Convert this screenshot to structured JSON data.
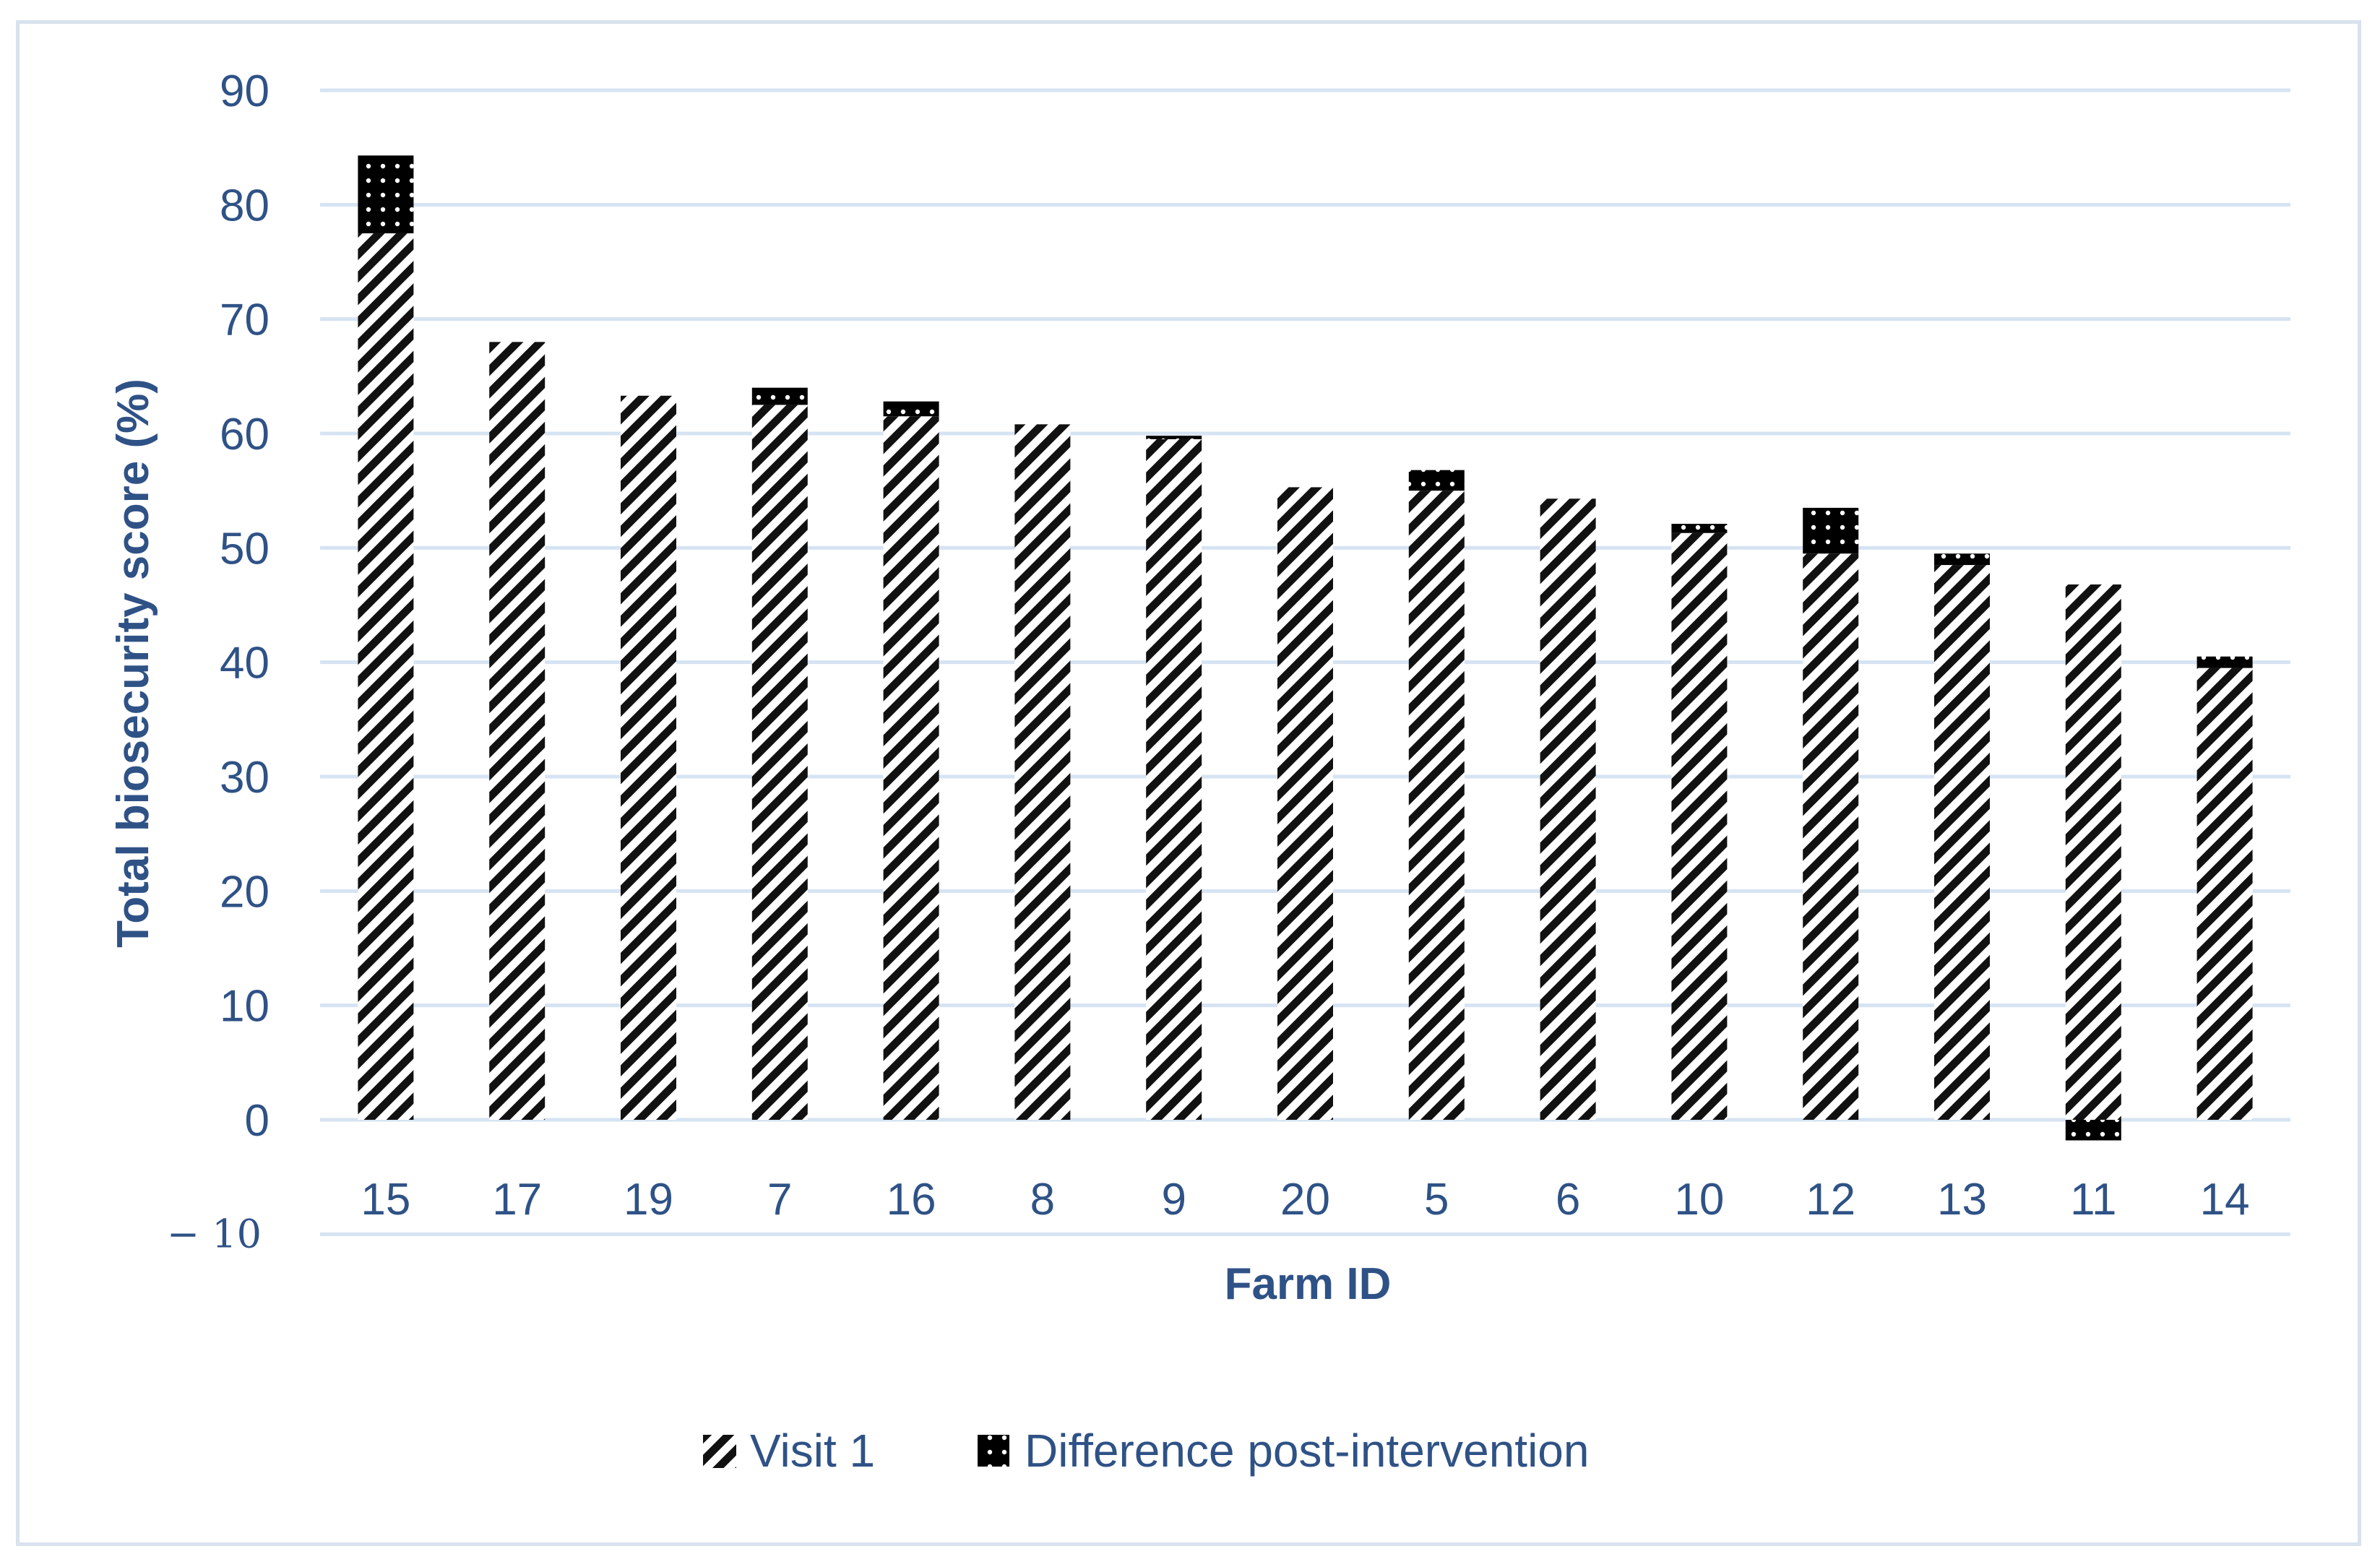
{
  "chart_data": {
    "type": "bar",
    "stacked": true,
    "title": "",
    "xlabel": "Farm ID",
    "ylabel": "Total biosecurity score (%)",
    "ylim": [
      -10,
      90
    ],
    "yticks": [
      90,
      80,
      70,
      60,
      50,
      40,
      30,
      20,
      10,
      0
    ],
    "ytick_neg_label": "− 10",
    "grid": true,
    "legend_position": "bottom",
    "categories": [
      "15",
      "17",
      "19",
      "7",
      "16",
      "8",
      "9",
      "20",
      "5",
      "6",
      "10",
      "12",
      "13",
      "11",
      "14"
    ],
    "series": [
      {
        "name": "Visit 1",
        "pattern": "diagonal-hatch",
        "values": [
          77.5,
          68,
          63.3,
          62.5,
          61.5,
          60.8,
          59.5,
          55.3,
          55,
          54.3,
          51.3,
          49.5,
          48.5,
          46.8,
          39.5
        ]
      },
      {
        "name": "Difference post-intervention",
        "pattern": "dotted-black",
        "values": [
          6.8,
          0,
          0,
          1.5,
          1.3,
          0,
          0.3,
          0,
          1.8,
          0,
          0.8,
          4.0,
          1.0,
          -1.8,
          1.0
        ]
      }
    ],
    "colors": {
      "axis_text": "#2f5286",
      "grid": "#d6e3f2",
      "bar": "#000000",
      "border": "#d9e2ee"
    }
  }
}
